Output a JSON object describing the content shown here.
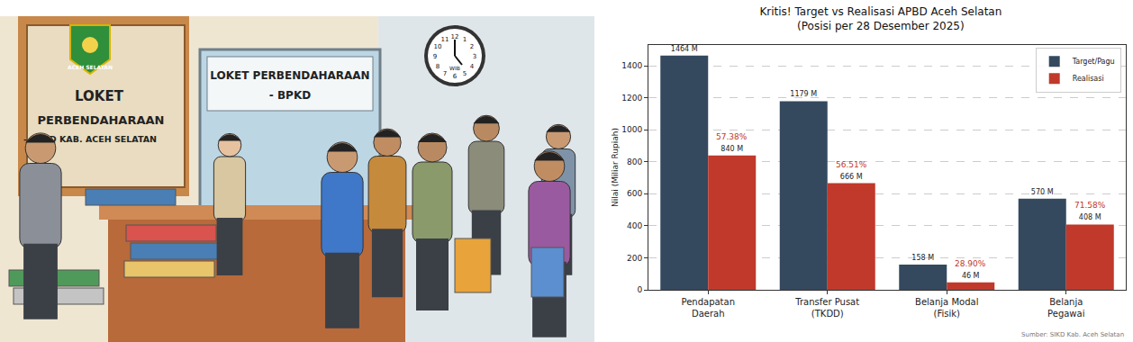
{
  "illustration": {
    "emblem": "ACEH SELATAN",
    "sign_counter": [
      "LOKET",
      "PERBENDAHARAAN",
      "- BPKD KAB. ACEH SELATAN"
    ],
    "sign_window": [
      "LOKET PERBENDAHARAAN",
      "- BPKD"
    ],
    "clock_numbers": [
      12,
      1,
      2,
      3,
      4,
      5,
      6,
      7,
      8,
      9,
      10,
      11
    ],
    "clock_label": "WIB"
  },
  "chart_data": {
    "type": "bar",
    "title": "Kritis! Target vs Realisasi APBD Aceh Selatan\n(Posisi per 28 Desember 2025)",
    "y_label": "Nilai (Miliar Rupiah)",
    "categories": [
      "Pendapatan\nDaerah",
      "Transfer Pusat\n(TKDD)",
      "Belanja Modal\n(Fisik)",
      "Belanja\nPegawai"
    ],
    "series": [
      {
        "name": "Target/Pagu",
        "color": "#34495e",
        "values": [
          1464,
          1179,
          158,
          570
        ],
        "value_labels": [
          "1464 M",
          "1179 M",
          "158 M",
          "570 M"
        ]
      },
      {
        "name": "Realisasi",
        "color": "#c0392b",
        "values": [
          840,
          666,
          46,
          408
        ],
        "value_labels": [
          "840 M",
          "666 M",
          "46 M",
          "408 M"
        ],
        "percentages": [
          57.38,
          56.51,
          28.9,
          71.58
        ],
        "percentage_labels": [
          "57.38%",
          "56.51%",
          "28.90%",
          "71.58%"
        ]
      }
    ],
    "ylim": [
      0,
      1530
    ],
    "yticks": [
      0,
      200,
      400,
      600,
      800,
      1000,
      1200,
      1400
    ],
    "grid": true,
    "legend": "upper right",
    "data_labels": true,
    "source": "Sumber: SIKD Kab. Aceh Selatan"
  }
}
